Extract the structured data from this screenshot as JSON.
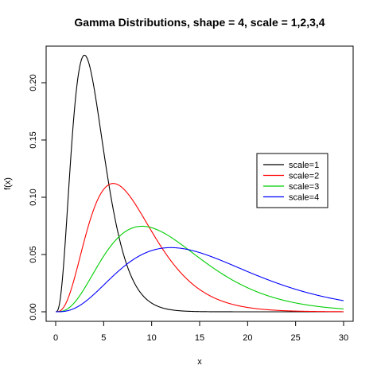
{
  "chart_data": {
    "type": "line",
    "title": "Gamma Distributions, shape = 4, scale = 1,2,3,4",
    "xlabel": "x",
    "ylabel": "f(x)",
    "xlim": [
      0,
      30
    ],
    "ylim": [
      0,
      0.225
    ],
    "x_ticks": [
      0,
      5,
      10,
      15,
      20,
      25,
      30
    ],
    "y_ticks": [
      0.0,
      0.05,
      0.1,
      0.15,
      0.2
    ],
    "y_tick_labels": [
      "0.00",
      "0.05",
      "0.10",
      "0.15",
      "0.20"
    ],
    "x_tick_labels": [
      "0",
      "5",
      "10",
      "15",
      "20",
      "25",
      "30"
    ],
    "shape": 4,
    "grid": false,
    "legend_position": "right",
    "series": [
      {
        "name": "scale=1",
        "scale": 1,
        "color": "#000000"
      },
      {
        "name": "scale=2",
        "scale": 2,
        "color": "#ff0000"
      },
      {
        "name": "scale=3",
        "scale": 3,
        "color": "#00cd00"
      },
      {
        "name": "scale=4",
        "scale": 4,
        "color": "#0000ff"
      }
    ]
  }
}
